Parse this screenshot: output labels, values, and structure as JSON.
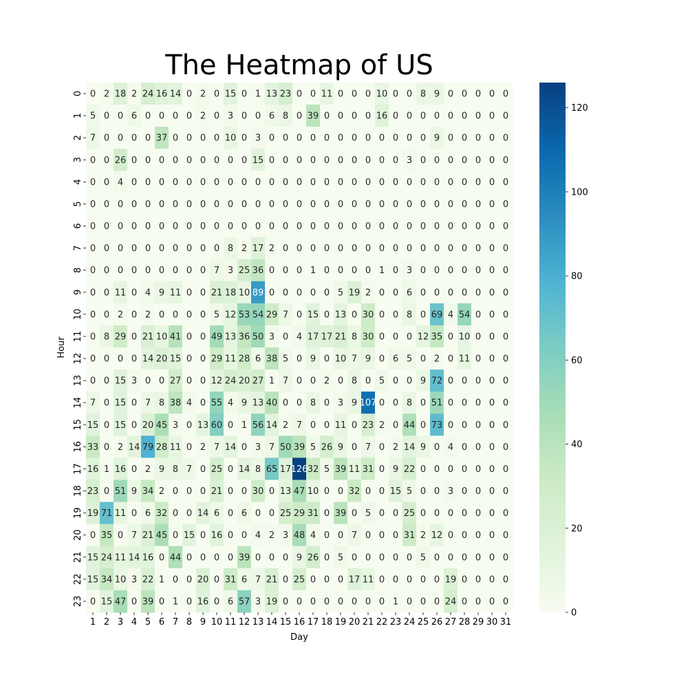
{
  "chart_data": {
    "type": "heatmap",
    "title": "The Heatmap of US",
    "xlabel": "Day",
    "ylabel": "Hour",
    "x_categories": [
      "1",
      "2",
      "3",
      "4",
      "5",
      "6",
      "7",
      "8",
      "9",
      "10",
      "11",
      "12",
      "13",
      "14",
      "15",
      "16",
      "17",
      "18",
      "19",
      "20",
      "21",
      "22",
      "23",
      "24",
      "25",
      "26",
      "27",
      "28",
      "29",
      "30",
      "31"
    ],
    "y_categories": [
      "0",
      "1",
      "2",
      "3",
      "4",
      "5",
      "6",
      "7",
      "8",
      "9",
      "10",
      "11",
      "12",
      "13",
      "14",
      "15",
      "16",
      "17",
      "18",
      "19",
      "20",
      "21",
      "22",
      "23"
    ],
    "values": [
      [
        0,
        2,
        18,
        2,
        24,
        16,
        14,
        0,
        2,
        0,
        15,
        0,
        1,
        13,
        23,
        0,
        0,
        11,
        0,
        0,
        0,
        10,
        0,
        0,
        8,
        9,
        0,
        0,
        0,
        0,
        0
      ],
      [
        5,
        0,
        0,
        6,
        0,
        0,
        0,
        0,
        2,
        0,
        3,
        0,
        0,
        6,
        8,
        0,
        39,
        0,
        0,
        0,
        0,
        16,
        0,
        0,
        0,
        0,
        0,
        0,
        0,
        0,
        0
      ],
      [
        7,
        0,
        0,
        0,
        0,
        37,
        0,
        0,
        0,
        0,
        10,
        0,
        3,
        0,
        0,
        0,
        0,
        0,
        0,
        0,
        0,
        0,
        0,
        0,
        0,
        9,
        0,
        0,
        0,
        0,
        0
      ],
      [
        0,
        0,
        26,
        0,
        0,
        0,
        0,
        0,
        0,
        0,
        0,
        0,
        15,
        0,
        0,
        0,
        0,
        0,
        0,
        0,
        0,
        0,
        0,
        3,
        0,
        0,
        0,
        0,
        0,
        0,
        0
      ],
      [
        0,
        0,
        4,
        0,
        0,
        0,
        0,
        0,
        0,
        0,
        0,
        0,
        0,
        0,
        0,
        0,
        0,
        0,
        0,
        0,
        0,
        0,
        0,
        0,
        0,
        0,
        0,
        0,
        0,
        0,
        0
      ],
      [
        0,
        0,
        0,
        0,
        0,
        0,
        0,
        0,
        0,
        0,
        0,
        0,
        0,
        0,
        0,
        0,
        0,
        0,
        0,
        0,
        0,
        0,
        0,
        0,
        0,
        0,
        0,
        0,
        0,
        0,
        0
      ],
      [
        0,
        0,
        0,
        0,
        0,
        0,
        0,
        0,
        0,
        0,
        0,
        0,
        0,
        0,
        0,
        0,
        0,
        0,
        0,
        0,
        0,
        0,
        0,
        0,
        0,
        0,
        0,
        0,
        0,
        0,
        0
      ],
      [
        0,
        0,
        0,
        0,
        0,
        0,
        0,
        0,
        0,
        0,
        8,
        2,
        17,
        2,
        0,
        0,
        0,
        0,
        0,
        0,
        0,
        0,
        0,
        0,
        0,
        0,
        0,
        0,
        0,
        0,
        0
      ],
      [
        0,
        0,
        0,
        0,
        0,
        0,
        0,
        0,
        0,
        7,
        3,
        25,
        36,
        0,
        0,
        0,
        1,
        0,
        0,
        0,
        0,
        1,
        0,
        3,
        0,
        0,
        0,
        0,
        0,
        0,
        0
      ],
      [
        0,
        0,
        11,
        0,
        4,
        9,
        11,
        0,
        0,
        21,
        18,
        10,
        89,
        0,
        0,
        0,
        0,
        0,
        5,
        19,
        2,
        0,
        0,
        6,
        0,
        0,
        0,
        0,
        0,
        0,
        0
      ],
      [
        0,
        0,
        2,
        0,
        2,
        0,
        0,
        0,
        0,
        5,
        12,
        53,
        54,
        29,
        7,
        0,
        15,
        0,
        13,
        0,
        30,
        0,
        0,
        8,
        0,
        69,
        4,
        54,
        0,
        0,
        0
      ],
      [
        0,
        8,
        29,
        0,
        21,
        10,
        41,
        0,
        0,
        49,
        13,
        36,
        50,
        3,
        0,
        4,
        17,
        17,
        21,
        8,
        30,
        0,
        0,
        0,
        12,
        35,
        0,
        10,
        0,
        0,
        0
      ],
      [
        0,
        0,
        0,
        0,
        14,
        20,
        15,
        0,
        0,
        29,
        11,
        28,
        6,
        38,
        5,
        0,
        9,
        0,
        10,
        7,
        9,
        0,
        6,
        5,
        0,
        2,
        0,
        11,
        0,
        0,
        0
      ],
      [
        0,
        0,
        15,
        3,
        0,
        0,
        27,
        0,
        0,
        12,
        24,
        20,
        27,
        1,
        7,
        0,
        0,
        2,
        0,
        8,
        0,
        5,
        0,
        0,
        9,
        72,
        0,
        0,
        0,
        0,
        0
      ],
      [
        7,
        0,
        15,
        0,
        7,
        8,
        38,
        4,
        0,
        55,
        4,
        9,
        13,
        40,
        0,
        0,
        8,
        0,
        3,
        9,
        107,
        0,
        0,
        8,
        0,
        51,
        0,
        0,
        0,
        0,
        0
      ],
      [
        15,
        0,
        15,
        0,
        20,
        45,
        3,
        0,
        13,
        60,
        0,
        1,
        56,
        14,
        2,
        7,
        0,
        0,
        11,
        0,
        23,
        2,
        0,
        44,
        0,
        73,
        0,
        0,
        0,
        0,
        0
      ],
      [
        33,
        0,
        2,
        14,
        79,
        28,
        11,
        0,
        2,
        7,
        14,
        0,
        3,
        7,
        50,
        39,
        5,
        26,
        9,
        0,
        7,
        0,
        2,
        14,
        9,
        0,
        4,
        0,
        0,
        0,
        0
      ],
      [
        16,
        1,
        16,
        0,
        2,
        9,
        8,
        7,
        0,
        25,
        0,
        14,
        8,
        65,
        17,
        126,
        32,
        5,
        39,
        11,
        31,
        0,
        9,
        22,
        0,
        0,
        0,
        0,
        0,
        0,
        0
      ],
      [
        23,
        0,
        51,
        9,
        34,
        2,
        0,
        0,
        0,
        21,
        0,
        0,
        30,
        0,
        13,
        47,
        10,
        0,
        0,
        32,
        0,
        0,
        15,
        5,
        0,
        0,
        3,
        0,
        0,
        0,
        0
      ],
      [
        19,
        71,
        11,
        0,
        6,
        32,
        0,
        0,
        14,
        6,
        0,
        6,
        0,
        0,
        25,
        29,
        31,
        0,
        39,
        0,
        5,
        0,
        0,
        25,
        0,
        0,
        0,
        0,
        0,
        0,
        0
      ],
      [
        0,
        35,
        0,
        7,
        21,
        45,
        0,
        15,
        0,
        16,
        0,
        0,
        4,
        2,
        3,
        48,
        4,
        0,
        0,
        7,
        0,
        0,
        0,
        31,
        2,
        12,
        0,
        0,
        0,
        0,
        0
      ],
      [
        15,
        24,
        11,
        14,
        16,
        0,
        44,
        0,
        0,
        0,
        0,
        39,
        0,
        0,
        0,
        9,
        26,
        0,
        5,
        0,
        0,
        0,
        0,
        0,
        5,
        0,
        0,
        0,
        0,
        0,
        0
      ],
      [
        15,
        34,
        10,
        3,
        22,
        1,
        0,
        0,
        20,
        0,
        31,
        6,
        7,
        21,
        0,
        25,
        0,
        0,
        0,
        17,
        11,
        0,
        0,
        0,
        0,
        0,
        19,
        0,
        0,
        0,
        0
      ],
      [
        0,
        15,
        47,
        0,
        39,
        0,
        1,
        0,
        16,
        0,
        6,
        57,
        3,
        19,
        0,
        0,
        0,
        0,
        0,
        0,
        0,
        0,
        1,
        0,
        0,
        0,
        24,
        0,
        0,
        0,
        0
      ]
    ],
    "vmin": 0,
    "vmax": 126,
    "colormap": "GnBu",
    "colorbar_ticks": [
      0,
      20,
      40,
      60,
      80,
      100,
      120
    ],
    "annotations": true
  }
}
